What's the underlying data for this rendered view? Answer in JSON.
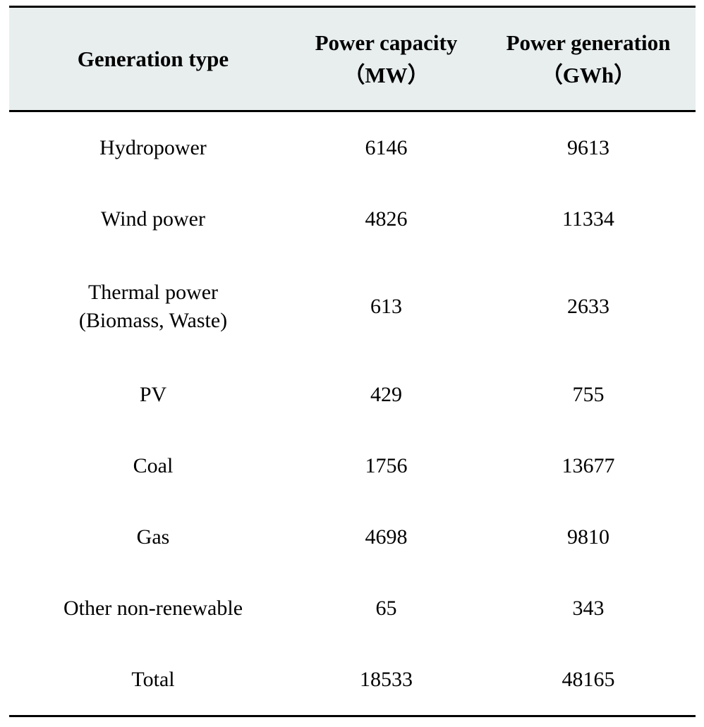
{
  "table": {
    "headers": [
      {
        "line1": "Generation type",
        "line2": ""
      },
      {
        "line1": "Power capacity",
        "line2": "（MW）"
      },
      {
        "line1": "Power generation",
        "line2": "（GWh）"
      }
    ],
    "rows": [
      {
        "type_line1": "Hydropower",
        "type_line2": "",
        "capacity": "6146",
        "generation": "9613"
      },
      {
        "type_line1": "Wind power",
        "type_line2": "",
        "capacity": "4826",
        "generation": "11334"
      },
      {
        "type_line1": "Thermal power",
        "type_line2": "(Biomass, Waste)",
        "capacity": "613",
        "generation": "2633"
      },
      {
        "type_line1": "PV",
        "type_line2": "",
        "capacity": "429",
        "generation": "755"
      },
      {
        "type_line1": "Coal",
        "type_line2": "",
        "capacity": "1756",
        "generation": "13677"
      },
      {
        "type_line1": "Gas",
        "type_line2": "",
        "capacity": "4698",
        "generation": "9810"
      },
      {
        "type_line1": "Other non-renewable",
        "type_line2": "",
        "capacity": "65",
        "generation": "343"
      },
      {
        "type_line1": "Total",
        "type_line2": "",
        "capacity": "18533",
        "generation": "48165"
      }
    ]
  }
}
